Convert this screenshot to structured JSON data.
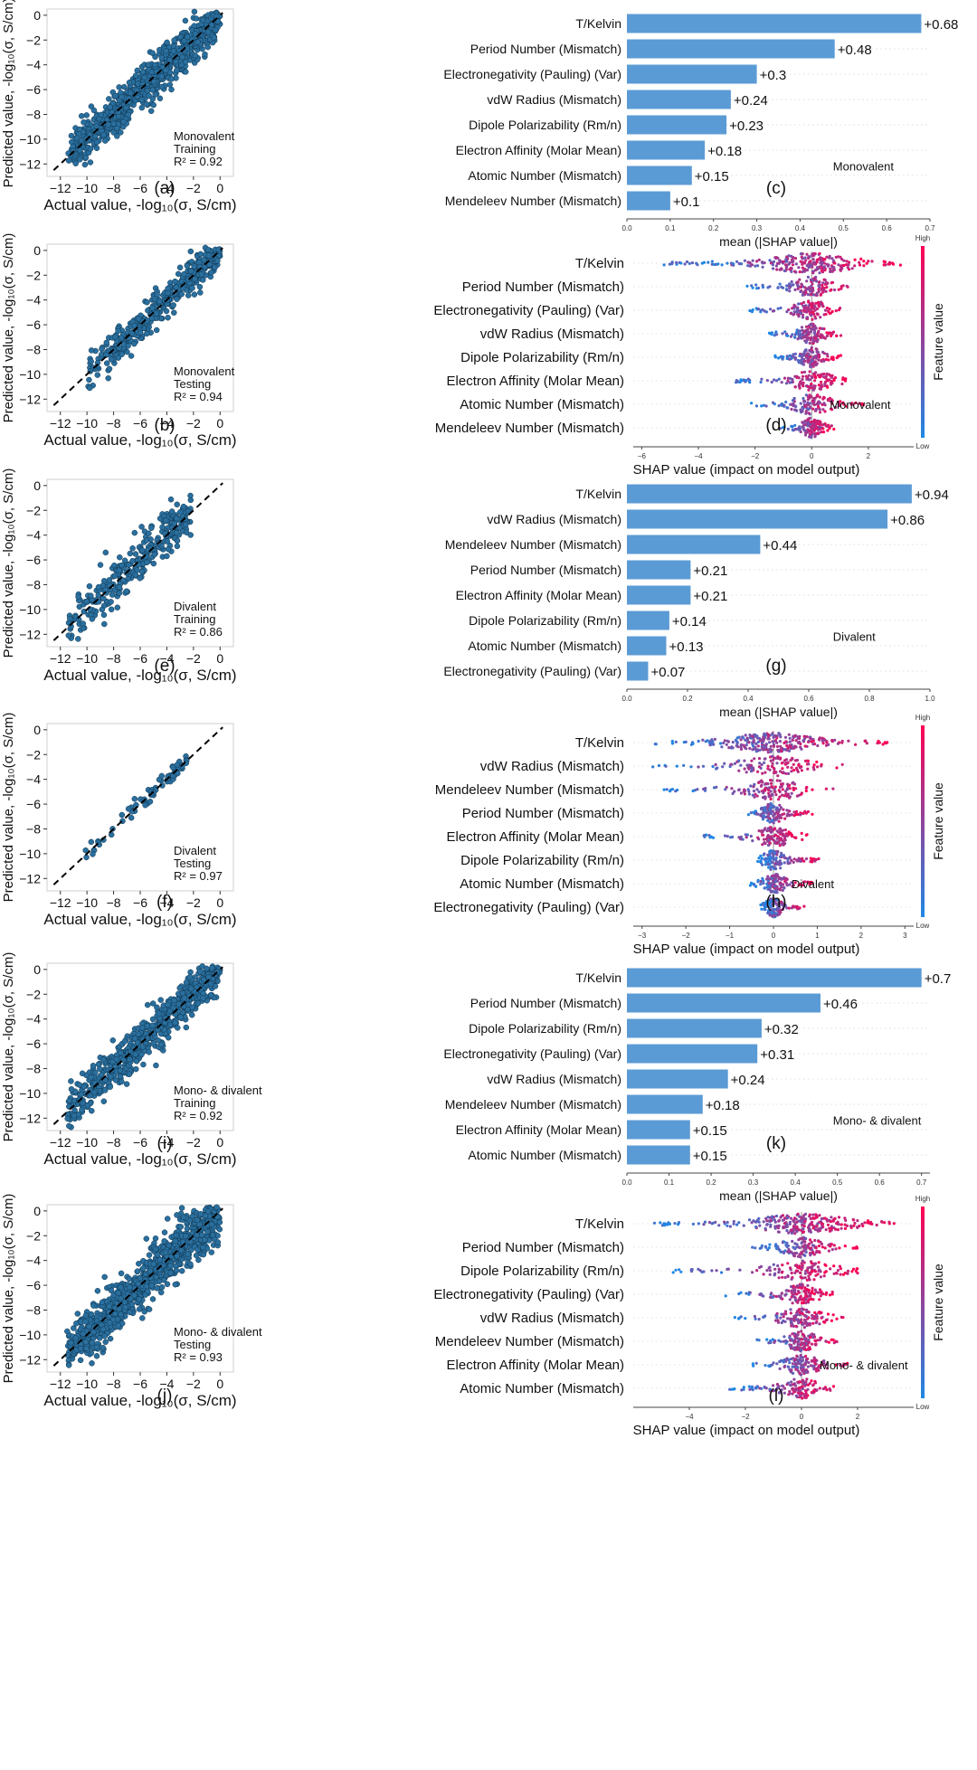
{
  "colors": {
    "scatter": "#2a6f9e",
    "scatter_edge": "#0e3550",
    "bar": "#5b9bd5",
    "low": "#1e88e5",
    "high": "#ff0052"
  },
  "chart_data": [
    {
      "id": "a",
      "type": "scatter",
      "panel_label": "(a)",
      "title": "",
      "xlabel": "Actual value, -log₁₀(σ, S/cm)",
      "ylabel": "Predicted value, -log₁₀(σ, S/cm)",
      "xlim": [
        -13,
        1
      ],
      "ylim": [
        -13,
        0.5
      ],
      "xticks": [
        -12,
        -10,
        -8,
        -6,
        -4,
        -2,
        0
      ],
      "yticks": [
        -12,
        -10,
        -8,
        -6,
        -4,
        -2,
        0
      ],
      "xtick_labels": [
        "−12",
        "−10",
        "−8",
        "−6",
        "−4",
        "−2",
        "0"
      ],
      "ytick_labels": [
        "−12",
        "−10",
        "−8",
        "−6",
        "−4",
        "−2",
        "0"
      ],
      "annotation": [
        "Monovalent",
        "Training",
        "R² = 0.92"
      ],
      "r2": 0.92,
      "n_points": 900,
      "spread": 0.85,
      "x_range": [
        -11.5,
        0
      ]
    },
    {
      "id": "c",
      "type": "bar",
      "panel_label": "(c)",
      "title": "",
      "xlabel": "mean (|SHAP value|)",
      "ylabel": "",
      "categories": [
        "T/Kelvin",
        "Period Number (Mismatch)",
        "Electronegativity (Pauling) (Var)",
        "vdW Radius (Mismatch)",
        "Dipole Polarizability (Rm/n)",
        "Electron Affinity (Molar Mean)",
        "Atomic Number (Mismatch)",
        "Mendeleev Number (Mismatch)"
      ],
      "values": [
        0.68,
        0.48,
        0.3,
        0.24,
        0.23,
        0.18,
        0.15,
        0.1
      ],
      "value_labels": [
        "+0.68",
        "+0.48",
        "+0.3",
        "+0.24",
        "+0.23",
        "+0.18",
        "+0.15",
        "+0.1"
      ],
      "xlim": [
        0,
        0.7
      ],
      "xticks": [
        0,
        0.1,
        0.2,
        0.3,
        0.4,
        0.5,
        0.6,
        0.7
      ],
      "xtick_labels": [
        "0.0",
        "0.1",
        "0.2",
        "0.3",
        "0.4",
        "0.5",
        "0.6",
        "0.7"
      ],
      "annotation": "Monovalent"
    },
    {
      "id": "b",
      "type": "scatter",
      "panel_label": "(b)",
      "title": "",
      "xlabel": "Actual value, -log₁₀(σ, S/cm)",
      "ylabel": "Predicted value, -log₁₀(σ, S/cm)",
      "xlim": [
        -13,
        1
      ],
      "ylim": [
        -13,
        0.5
      ],
      "xticks": [
        -12,
        -10,
        -8,
        -6,
        -4,
        -2,
        0
      ],
      "yticks": [
        -12,
        -10,
        -8,
        -6,
        -4,
        -2,
        0
      ],
      "xtick_labels": [
        "−12",
        "−10",
        "−8",
        "−6",
        "−4",
        "−2",
        "0"
      ],
      "ytick_labels": [
        "−12",
        "−10",
        "−8",
        "−6",
        "−4",
        "−2",
        "0"
      ],
      "annotation": [
        "Monovalent",
        "Testing",
        "R² = 0.94"
      ],
      "r2": 0.94,
      "n_points": 380,
      "spread": 0.7,
      "x_range": [
        -10,
        0
      ]
    },
    {
      "id": "d",
      "type": "beeswarm",
      "panel_label": "(d)",
      "title": "",
      "xlabel": "SHAP value (impact on model output)",
      "ylabel": "",
      "categories": [
        "T/Kelvin",
        "Period Number (Mismatch)",
        "Electronegativity (Pauling) (Var)",
        "vdW Radius (Mismatch)",
        "Dipole Polarizability (Rm/n)",
        "Electron Affinity (Molar Mean)",
        "Atomic Number (Mismatch)",
        "Mendeleev Number (Mismatch)"
      ],
      "ranges": [
        [
          -5.3,
          3.2
        ],
        [
          -2.3,
          1.5
        ],
        [
          -2.2,
          1.0
        ],
        [
          -1.5,
          1.2
        ],
        [
          -1.3,
          1.1
        ],
        [
          -2.8,
          1.2
        ],
        [
          -2.2,
          1.9
        ],
        [
          -1.2,
          0.8
        ]
      ],
      "xlim": [
        -6.3,
        3.6
      ],
      "xticks": [
        -6,
        -4,
        -2,
        0,
        2
      ],
      "xtick_labels": [
        "−6",
        "−4",
        "−2",
        "0",
        "2"
      ],
      "annotation": "Monovalent",
      "colorbar": {
        "high": "High",
        "low": "Low",
        "label": "Feature value"
      }
    },
    {
      "id": "e",
      "type": "scatter",
      "panel_label": "(e)",
      "title": "",
      "xlabel": "Actual value, -log₁₀(σ, S/cm)",
      "ylabel": "Predicted value, -log₁₀(σ, S/cm)",
      "xlim": [
        -13,
        1
      ],
      "ylim": [
        -13,
        0.5
      ],
      "xticks": [
        -12,
        -10,
        -8,
        -6,
        -4,
        -2,
        0
      ],
      "yticks": [
        -12,
        -10,
        -8,
        -6,
        -4,
        -2,
        0
      ],
      "xtick_labels": [
        "−12",
        "−10",
        "−8",
        "−6",
        "−4",
        "−2",
        "0"
      ],
      "ytick_labels": [
        "−12",
        "−10",
        "−8",
        "−6",
        "−4",
        "−2",
        "0"
      ],
      "annotation": [
        "Divalent",
        "Training",
        "R² = 0.86"
      ],
      "r2": 0.86,
      "n_points": 300,
      "spread": 0.9,
      "x_range": [
        -11.5,
        -2.2
      ]
    },
    {
      "id": "g",
      "type": "bar",
      "panel_label": "(g)",
      "title": "",
      "xlabel": "mean (|SHAP value|)",
      "ylabel": "",
      "categories": [
        "T/Kelvin",
        "vdW Radius (Mismatch)",
        "Mendeleev Number (Mismatch)",
        "Period Number (Mismatch)",
        "Electron Affinity (Molar Mean)",
        "Dipole Polarizability (Rm/n)",
        "Atomic Number (Mismatch)",
        "Electronegativity (Pauling) (Var)"
      ],
      "values": [
        0.94,
        0.86,
        0.44,
        0.21,
        0.21,
        0.14,
        0.13,
        0.07
      ],
      "value_labels": [
        "+0.94",
        "+0.86",
        "+0.44",
        "+0.21",
        "+0.21",
        "+0.14",
        "+0.13",
        "+0.07"
      ],
      "xlim": [
        0,
        1.0
      ],
      "xticks": [
        0,
        0.2,
        0.4,
        0.6,
        0.8,
        1.0
      ],
      "xtick_labels": [
        "0.0",
        "0.2",
        "0.4",
        "0.6",
        "0.8",
        "1.0"
      ],
      "annotation": "Divalent"
    },
    {
      "id": "f",
      "type": "scatter",
      "panel_label": "(f)",
      "title": "",
      "xlabel": "Actual value, -log₁₀(σ, S/cm)",
      "ylabel": "Predicted value, -log₁₀(σ, S/cm)",
      "xlim": [
        -13,
        1
      ],
      "ylim": [
        -13,
        0.5
      ],
      "xticks": [
        -12,
        -10,
        -8,
        -6,
        -4,
        -2,
        0
      ],
      "yticks": [
        -12,
        -10,
        -8,
        -6,
        -4,
        -2,
        0
      ],
      "xtick_labels": [
        "−12",
        "−10",
        "−8",
        "−6",
        "−4",
        "−2",
        "0"
      ],
      "ytick_labels": [
        "−12",
        "−10",
        "−8",
        "−6",
        "−4",
        "−2",
        "0"
      ],
      "annotation": [
        "Divalent",
        "Testing",
        "R² = 0.97"
      ],
      "r2": 0.97,
      "n_points": 70,
      "spread": 0.3,
      "x_range": [
        -10.5,
        -2.5
      ]
    },
    {
      "id": "h",
      "type": "beeswarm",
      "panel_label": "(h)",
      "title": "",
      "xlabel": "SHAP value (impact on model output)",
      "ylabel": "",
      "categories": [
        "T/Kelvin",
        "vdW Radius (Mismatch)",
        "Mendeleev Number (Mismatch)",
        "Period Number (Mismatch)",
        "Electron Affinity (Molar Mean)",
        "Dipole Polarizability (Rm/n)",
        "Atomic Number (Mismatch)",
        "Electronegativity (Pauling) (Var)"
      ],
      "ranges": [
        [
          -2.7,
          2.7
        ],
        [
          -2.8,
          1.7
        ],
        [
          -2.5,
          1.5
        ],
        [
          -0.6,
          0.9
        ],
        [
          -1.6,
          0.8
        ],
        [
          -0.4,
          1.1
        ],
        [
          -0.6,
          0.9
        ],
        [
          -0.3,
          0.7
        ]
      ],
      "xlim": [
        -3.2,
        3.2
      ],
      "xticks": [
        -3,
        -2,
        -1,
        0,
        1,
        2,
        3
      ],
      "xtick_labels": [
        "−3",
        "−2",
        "−1",
        "0",
        "1",
        "2",
        "3"
      ],
      "annotation": "Divalent",
      "colorbar": {
        "high": "High",
        "low": "Low",
        "label": "Feature value"
      }
    },
    {
      "id": "i",
      "type": "scatter",
      "panel_label": "(i)",
      "title": "",
      "xlabel": "Actual value, -log₁₀(σ, S/cm)",
      "ylabel": "Predicted value, -log₁₀(σ, S/cm)",
      "xlim": [
        -13,
        1
      ],
      "ylim": [
        -13,
        0.5
      ],
      "xticks": [
        -12,
        -10,
        -8,
        -6,
        -4,
        -2,
        0
      ],
      "yticks": [
        -12,
        -10,
        -8,
        -6,
        -4,
        -2,
        0
      ],
      "xtick_labels": [
        "−12",
        "−10",
        "−8",
        "−6",
        "−4",
        "−2",
        "0"
      ],
      "ytick_labels": [
        "−12",
        "−10",
        "−8",
        "−6",
        "−4",
        "−2",
        "0"
      ],
      "annotation": [
        "Mono- & divalent",
        "Training",
        "R² = 0.92"
      ],
      "r2": 0.92,
      "n_points": 650,
      "spread": 0.85,
      "x_range": [
        -11.5,
        0
      ]
    },
    {
      "id": "k",
      "type": "bar",
      "panel_label": "(k)",
      "title": "",
      "xlabel": "mean (|SHAP value|)",
      "ylabel": "",
      "categories": [
        "T/Kelvin",
        "Period Number (Mismatch)",
        "Dipole Polarizability (Rm/n)",
        "Electronegativity (Pauling) (Var)",
        "vdW Radius (Mismatch)",
        "Mendeleev Number (Mismatch)",
        "Electron Affinity (Molar Mean)",
        "Atomic Number (Mismatch)"
      ],
      "values": [
        0.7,
        0.46,
        0.32,
        0.31,
        0.24,
        0.18,
        0.15,
        0.15
      ],
      "value_labels": [
        "+0.7",
        "+0.46",
        "+0.32",
        "+0.31",
        "+0.24",
        "+0.18",
        "+0.15",
        "+0.15"
      ],
      "xlim": [
        0,
        0.72
      ],
      "xticks": [
        0,
        0.1,
        0.2,
        0.3,
        0.4,
        0.5,
        0.6,
        0.7
      ],
      "xtick_labels": [
        "0.0",
        "0.1",
        "0.2",
        "0.3",
        "0.4",
        "0.5",
        "0.6",
        "0.7"
      ],
      "annotation": "Mono- & divalent"
    },
    {
      "id": "j",
      "type": "scatter",
      "panel_label": "(j)",
      "title": "",
      "xlabel": "Actual value, -log₁₀(σ, S/cm)",
      "ylabel": "Predicted value, -log₁₀(σ, S/cm)",
      "xlim": [
        -13,
        1
      ],
      "ylim": [
        -13,
        0.5
      ],
      "xticks": [
        -12,
        -10,
        -8,
        -6,
        -4,
        -2,
        0
      ],
      "yticks": [
        -12,
        -10,
        -8,
        -6,
        -4,
        -2,
        0
      ],
      "xtick_labels": [
        "−12",
        "−10",
        "−8",
        "−6",
        "−4",
        "−2",
        "0"
      ],
      "ytick_labels": [
        "−12",
        "−10",
        "−8",
        "−6",
        "−4",
        "−2",
        "0"
      ],
      "annotation": [
        "Mono- & divalent",
        "Testing",
        "R² = 0.93"
      ],
      "r2": 0.93,
      "n_points": 1000,
      "spread": 0.95,
      "x_range": [
        -11.5,
        0
      ]
    },
    {
      "id": "l",
      "type": "beeswarm",
      "panel_label": "(l)",
      "title": "",
      "xlabel": "SHAP value (impact on model output)",
      "ylabel": "",
      "categories": [
        "T/Kelvin",
        "Period Number (Mismatch)",
        "Dipole Polarizability (Rm/n)",
        "Electronegativity (Pauling) (Var)",
        "vdW Radius (Mismatch)",
        "Mendeleev Number (Mismatch)",
        "Electron Affinity (Molar Mean)",
        "Atomic Number (Mismatch)"
      ],
      "ranges": [
        [
          -5.3,
          3.5
        ],
        [
          -2.0,
          2.0
        ],
        [
          -4.6,
          2.0
        ],
        [
          -2.8,
          1.2
        ],
        [
          -2.5,
          1.5
        ],
        [
          -1.7,
          1.3
        ],
        [
          -1.8,
          1.8
        ],
        [
          -2.6,
          1.2
        ]
      ],
      "xlim": [
        -6.0,
        4.0
      ],
      "xticks": [
        -4,
        -2,
        0,
        2
      ],
      "xtick_labels": [
        "−4",
        "−2",
        "0",
        "2"
      ],
      "annotation": "Mono- & divalent",
      "colorbar": {
        "high": "High",
        "low": "Low",
        "label": "Feature value"
      }
    }
  ]
}
